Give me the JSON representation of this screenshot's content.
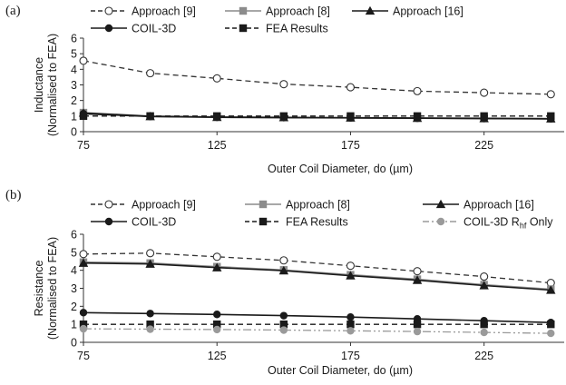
{
  "chart_data": [
    {
      "type": "line",
      "panel_label": "(a)",
      "xlabel": "Outer Coil Diameter, do (µm)",
      "ylabel_lines": [
        "Inductance",
        "(Normalised to FEA)"
      ],
      "xlim": [
        75,
        255
      ],
      "ylim": [
        0,
        6
      ],
      "xticks": [
        75,
        125,
        175,
        225
      ],
      "yticks": [
        0,
        1,
        2,
        3,
        4,
        5,
        6
      ],
      "grid": false,
      "legend_position": "top",
      "x": [
        75,
        100,
        125,
        150,
        175,
        200,
        225,
        250
      ],
      "series": [
        {
          "name": "Approach [9]",
          "color": "#333333",
          "dash": "dashed",
          "marker": "circle-open",
          "values": [
            4.55,
            3.75,
            3.42,
            3.05,
            2.85,
            2.6,
            2.5,
            2.4
          ]
        },
        {
          "name": "Approach [8]",
          "color": "#8c8c8c",
          "dash": "solid",
          "marker": "square",
          "values": [
            1.22,
            1.0,
            0.95,
            0.92,
            0.9,
            0.88,
            0.86,
            0.84
          ]
        },
        {
          "name": "Approach [16]",
          "color": "#1a1a1a",
          "dash": "solid",
          "marker": "triangle",
          "values": [
            1.2,
            0.98,
            0.93,
            0.91,
            0.89,
            0.87,
            0.85,
            0.83
          ]
        },
        {
          "name": "COIL-3D",
          "color": "#1a1a1a",
          "dash": "solid",
          "marker": "circle",
          "values": [
            1.15,
            0.97,
            0.92,
            0.9,
            0.88,
            0.86,
            0.84,
            0.82
          ]
        },
        {
          "name": "FEA Results",
          "color": "#1a1a1a",
          "dash": "dashed",
          "marker": "square",
          "values": [
            1.0,
            1.0,
            1.0,
            1.0,
            1.0,
            1.0,
            1.0,
            1.0
          ]
        }
      ]
    },
    {
      "type": "line",
      "panel_label": "(b)",
      "xlabel": "Outer Coil Diameter, do (µm)",
      "ylabel_lines": [
        "Resistance",
        "(Normalised to FEA)"
      ],
      "xlim": [
        75,
        255
      ],
      "ylim": [
        0,
        6
      ],
      "xticks": [
        75,
        125,
        175,
        225
      ],
      "yticks": [
        0,
        1,
        2,
        3,
        4,
        5,
        6
      ],
      "grid": false,
      "legend_position": "top",
      "x": [
        75,
        100,
        125,
        150,
        175,
        200,
        225,
        250
      ],
      "series": [
        {
          "name": "Approach [9]",
          "color": "#333333",
          "dash": "dashed",
          "marker": "circle-open",
          "values": [
            4.9,
            4.95,
            4.75,
            4.55,
            4.25,
            3.95,
            3.65,
            3.3
          ]
        },
        {
          "name": "Approach [8]",
          "color": "#8c8c8c",
          "dash": "solid",
          "marker": "square",
          "values": [
            4.45,
            4.4,
            4.2,
            4.02,
            3.75,
            3.5,
            3.2,
            2.95
          ]
        },
        {
          "name": "Approach [16]",
          "color": "#1a1a1a",
          "dash": "solid",
          "marker": "triangle",
          "values": [
            4.4,
            4.35,
            4.15,
            3.98,
            3.7,
            3.45,
            3.15,
            2.9
          ]
        },
        {
          "name": "COIL-3D",
          "color": "#1a1a1a",
          "dash": "solid",
          "marker": "circle",
          "values": [
            1.65,
            1.6,
            1.55,
            1.48,
            1.4,
            1.3,
            1.2,
            1.1
          ]
        },
        {
          "name": "FEA Results",
          "color": "#1a1a1a",
          "dash": "dashed",
          "marker": "square",
          "values": [
            1.0,
            1.0,
            1.0,
            1.0,
            1.0,
            1.0,
            1.0,
            1.0
          ]
        },
        {
          "name": "COIL-3D R",
          "name_sub": "hf",
          "name_suffix": " Only",
          "color": "#9a9a9a",
          "dash": "dashdotdot",
          "marker": "circle",
          "values": [
            0.75,
            0.73,
            0.71,
            0.68,
            0.64,
            0.6,
            0.55,
            0.5
          ]
        }
      ]
    }
  ]
}
